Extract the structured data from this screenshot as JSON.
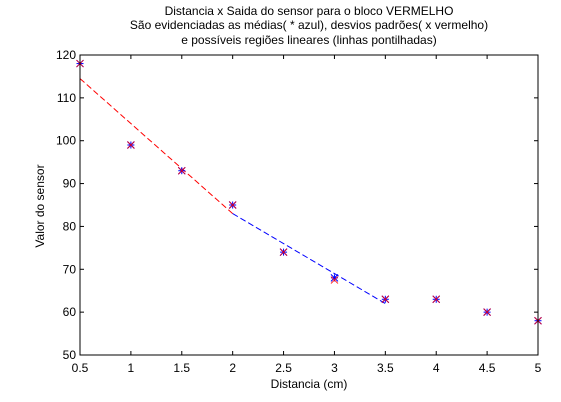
{
  "chart_data": {
    "type": "scatter",
    "title_lines": [
      "Distancia x Saida do sensor para o bloco VERMELHO",
      "São evidenciadas as médias( * azul), desvios padrões( x vermelho)",
      "e possíveis regiões lineares (linhas pontilhadas)"
    ],
    "xlabel": "Distancia (cm)",
    "ylabel": "Valor do sensor",
    "xlim": [
      0.5,
      5
    ],
    "ylim": [
      50,
      120
    ],
    "x_ticks": [
      0.5,
      1,
      1.5,
      2,
      2.5,
      3,
      3.5,
      4,
      4.5,
      5
    ],
    "x_tick_labels": [
      "0.5",
      "1",
      "1.5",
      "2",
      "2.5",
      "3",
      "3.5",
      "4",
      "4.5",
      "5"
    ],
    "y_ticks": [
      50,
      60,
      70,
      80,
      90,
      100,
      110,
      120
    ],
    "y_tick_labels": [
      "50",
      "60",
      "70",
      "80",
      "90",
      "100",
      "110",
      "120"
    ],
    "grid": false,
    "series": [
      {
        "marker": "star",
        "color": "#0000ff",
        "x": [
          0.5,
          1,
          1.5,
          2,
          2.5,
          3,
          3.5,
          4,
          4.5,
          5
        ],
        "y": [
          118,
          99,
          93,
          85,
          74,
          68,
          63,
          63,
          60,
          58
        ]
      },
      {
        "marker": "x",
        "color": "#ff0000",
        "x": [
          0.5,
          1,
          1.5,
          2,
          2.5,
          3,
          3.5,
          4,
          4.5,
          5
        ],
        "y": [
          118,
          99,
          93,
          85,
          74,
          67.5,
          63,
          63,
          60,
          58
        ]
      },
      {
        "line": "dashed",
        "color": "#ff0000",
        "x": [
          0.5,
          2
        ],
        "y": [
          114.5,
          83
        ]
      },
      {
        "line": "dashed",
        "color": "#0000ff",
        "x": [
          2,
          3.5
        ],
        "y": [
          83,
          62
        ]
      }
    ]
  }
}
